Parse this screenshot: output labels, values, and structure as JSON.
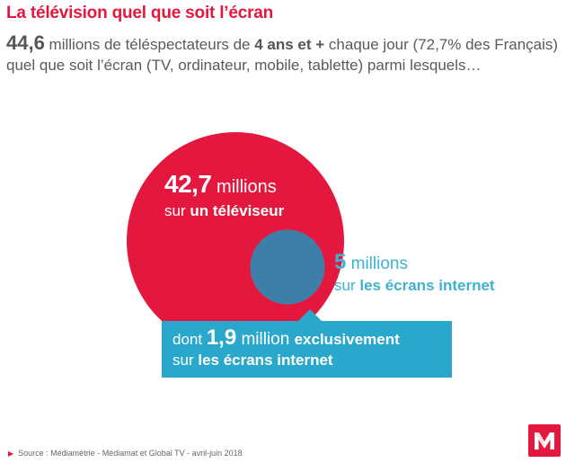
{
  "title": "La télévision quel que soit l’écran",
  "intro": {
    "total_value": "44,6",
    "text_part1": " millions de téléspectateurs de ",
    "age": "4 ans et +",
    "text_part2": " chaque jour (72,7% des Français) quel que soit l’écran (TV, ordinateur, mobile, tablette) parmi lesquels…"
  },
  "chart_data": {
    "type": "venn",
    "sets": [
      {
        "value": 42.7,
        "value_label": "42,7",
        "unit": " millions",
        "line2_prefix": "sur ",
        "line2_bold": "un téléviseur",
        "color": "#e4183e"
      },
      {
        "value": 5,
        "value_label": "5",
        "unit": " millions",
        "line2_prefix": "sur ",
        "line2_bold": "les écrans internet",
        "color": "#3eb2cf"
      }
    ],
    "exclusive": {
      "value": 1.9,
      "prefix": "dont ",
      "value_label": "1,9",
      "unit": " million ",
      "bold_word": "exclusivement",
      "line2_prefix": "sur ",
      "line2_bold": "les écrans internet",
      "color": "#29a8cb"
    },
    "overlap_color": "#3d7fa8"
  },
  "source": "Source : Médiamétrie - Médiamat et Global TV - avril-juin 2018",
  "logo_icon": "mediametrie-logo-icon"
}
